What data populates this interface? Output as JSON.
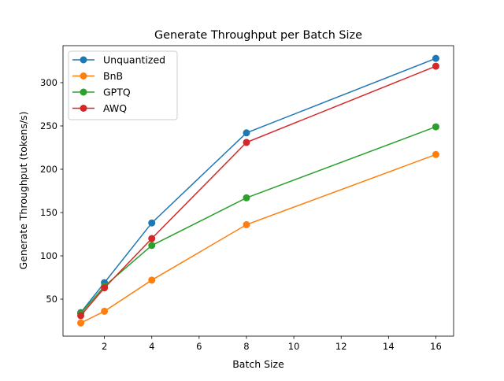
{
  "chart_data": {
    "type": "line",
    "title": "Generate Throughput per Batch Size",
    "xlabel": "Batch Size",
    "ylabel": "Generate Throughput (tokens/s)",
    "xlim": [
      0.25,
      16.75
    ],
    "ylim": [
      7.3,
      342.7
    ],
    "xticks": [
      2,
      4,
      6,
      8,
      10,
      12,
      14,
      16
    ],
    "yticks": [
      50,
      100,
      150,
      200,
      250,
      300
    ],
    "grid": false,
    "legend_position": "upper-left",
    "x": [
      1,
      2,
      4,
      8,
      16
    ],
    "series": [
      {
        "name": "Unquantized",
        "color": "#1f77b4",
        "values": [
          34.5,
          69,
          138,
          242,
          328
        ]
      },
      {
        "name": "BnB",
        "color": "#ff7f0e",
        "values": [
          22.5,
          36,
          72,
          136,
          217
        ]
      },
      {
        "name": "GPTQ",
        "color": "#2ca02c",
        "values": [
          33.5,
          65,
          112,
          167,
          249
        ]
      },
      {
        "name": "AWQ",
        "color": "#d62728",
        "values": [
          31,
          63,
          120,
          231,
          319
        ]
      }
    ]
  }
}
